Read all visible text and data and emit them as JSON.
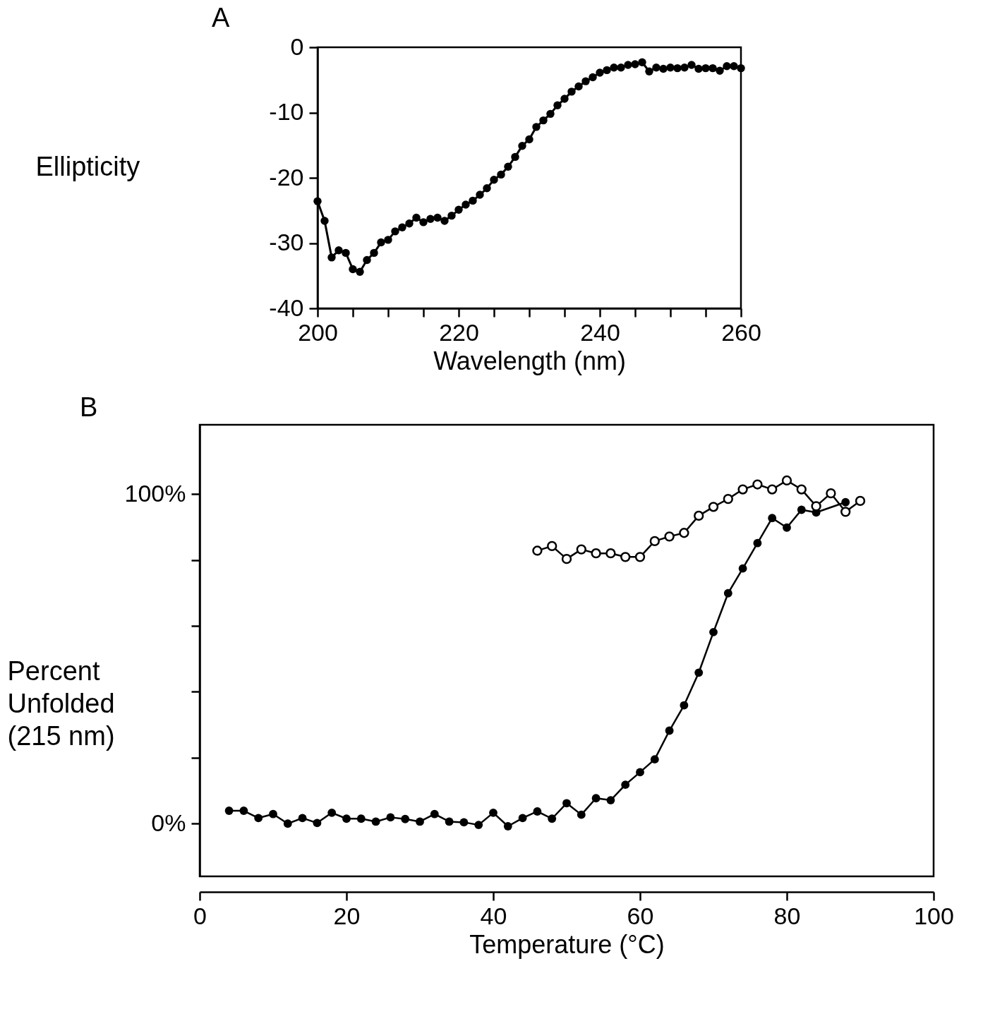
{
  "chart_data": [
    {
      "type": "line",
      "title": "A",
      "xlabel": "Wavelength (nm)",
      "ylabel": "Ellipticity",
      "xlim": [
        200,
        260
      ],
      "ylim": [
        -40,
        0
      ],
      "xticks": [
        200,
        {
          "value": 205,
          "label": null
        },
        {
          "value": 210,
          "label": null
        },
        {
          "value": 215,
          "label": null
        },
        220,
        {
          "value": 225,
          "label": null
        },
        {
          "value": 230,
          "label": null
        },
        {
          "value": 235,
          "label": null
        },
        240,
        {
          "value": 245,
          "label": null
        },
        {
          "value": 250,
          "label": null
        },
        {
          "value": 255,
          "label": null
        },
        260
      ],
      "yticks": [
        -40,
        -30,
        -20,
        -10,
        0
      ],
      "grid": false,
      "marker": "circle",
      "line_style": "solid",
      "x": [
        200,
        201,
        202,
        203,
        204,
        205,
        206,
        207,
        208,
        209,
        210,
        211,
        212,
        213,
        214,
        215,
        216,
        217,
        218,
        219,
        220,
        221,
        222,
        223,
        224,
        225,
        226,
        227,
        228,
        229,
        230,
        231,
        232,
        233,
        234,
        235,
        236,
        237,
        238,
        239,
        240,
        241,
        242,
        243,
        244,
        245,
        246,
        247,
        248,
        249,
        250,
        251,
        252,
        253,
        254,
        255,
        256,
        257,
        258,
        259,
        260
      ],
      "series": [
        {
          "color": "#000000",
          "values": [
            -23.6,
            -26.6,
            -32.2,
            -31.1,
            -31.5,
            -34.0,
            -34.4,
            -32.6,
            -31.5,
            -29.9,
            -29.5,
            -28.2,
            -27.6,
            -27.0,
            -26.1,
            -26.8,
            -26.3,
            -26.1,
            -26.6,
            -25.8,
            -24.9,
            -24.1,
            -23.5,
            -22.6,
            -21.6,
            -20.3,
            -19.5,
            -18.3,
            -16.8,
            -15.1,
            -14.1,
            -12.2,
            -11.2,
            -10.2,
            -8.9,
            -7.9,
            -6.8,
            -6.0,
            -5.2,
            -4.6,
            -3.9,
            -3.5,
            -3.1,
            -3.1,
            -2.7,
            -2.6,
            -2.3,
            -3.7,
            -3.1,
            -3.3,
            -3.1,
            -3.2,
            -3.1,
            -2.7,
            -3.3,
            -3.2,
            -3.2,
            -3.6,
            -2.9,
            -2.9,
            -3.2
          ]
        }
      ]
    },
    {
      "type": "line",
      "title": "B",
      "xlabel": "Temperature (°C)",
      "ylabel": "Percent Unfolded (215 nm)",
      "xlim": [
        0,
        100
      ],
      "ylim": [
        -16,
        121
      ],
      "xticks": [
        0,
        20,
        40,
        60,
        80,
        100
      ],
      "yticks": [
        {
          "value": 0,
          "label": "0%"
        },
        {
          "value": 20,
          "label": null
        },
        {
          "value": 40,
          "label": null
        },
        {
          "value": 60,
          "label": null
        },
        {
          "value": 80,
          "label": null
        },
        {
          "value": 100,
          "label": "100%"
        }
      ],
      "grid": false,
      "marker": "circle",
      "line_style": "solid",
      "series": [
        {
          "color": "#000000",
          "x": [
            4,
            6,
            8,
            10,
            12,
            14,
            16,
            18,
            20,
            22,
            24,
            26,
            28,
            30,
            32,
            34,
            36,
            38,
            40,
            42,
            44,
            46,
            48,
            50,
            52,
            54,
            56,
            58,
            60,
            62,
            64,
            66,
            68,
            70,
            72,
            74,
            76,
            78,
            80,
            82,
            84,
            88
          ],
          "values": [
            3.9,
            3.9,
            1.7,
            2.9,
            0,
            1.7,
            0.2,
            3.3,
            1.5,
            1.5,
            0.6,
            1.9,
            1.4,
            0.6,
            2.9,
            0.6,
            0.4,
            -0.4,
            3.3,
            -0.8,
            1.7,
            3.7,
            1.5,
            6.2,
            2.7,
            7.7,
            7.1,
            11.8,
            15.6,
            19.5,
            28.2,
            35.9,
            45.8,
            58.1,
            69.9,
            77.4,
            85.1,
            92.7,
            89.8,
            95.2,
            94.4,
            97.5
          ]
        },
        {
          "color": "#000000",
          "x": [
            46,
            48,
            50,
            52,
            54,
            56,
            58,
            60,
            62,
            64,
            66,
            68,
            70,
            72,
            74,
            76,
            78,
            80,
            82,
            84,
            86,
            88,
            90
          ],
          "values": [
            82.8,
            84.2,
            80.3,
            83.2,
            82.0,
            82.0,
            80.9,
            80.9,
            85.7,
            87.1,
            88.2,
            93.4,
            96.1,
            98.5,
            101.4,
            102.9,
            101.4,
            104.1,
            101.4,
            96.3,
            100.2,
            94.6,
            97.9
          ]
        }
      ]
    }
  ]
}
